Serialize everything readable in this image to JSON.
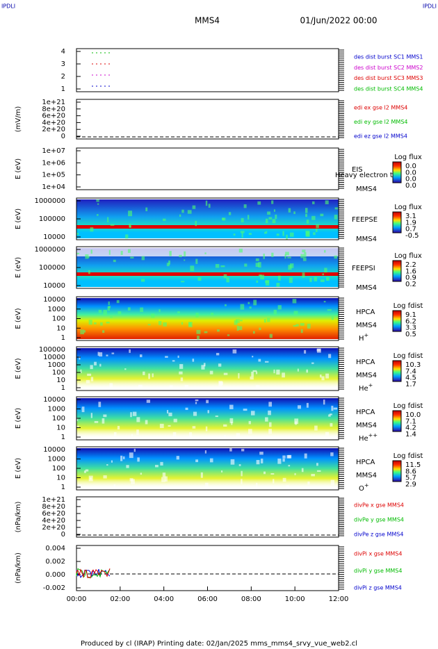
{
  "header": {
    "left": "IPDLI",
    "right": "IPDLI",
    "center": "MMS4",
    "date": "01/Jun/2022 00:00"
  },
  "panels": [
    {
      "yticks": [
        "4",
        "3",
        "2",
        "1"
      ],
      "labels": [
        {
          "text": "des dist burst SC1 MMS1",
          "color": "#0000cc"
        },
        {
          "text": "des dist burst SC2 MMS2",
          "color": "#cc00cc"
        },
        {
          "text": "des dist burst SC3 MMS3",
          "color": "#dd0000"
        },
        {
          "text": "des dist burst SC4 MMS4",
          "color": "#00bb00"
        }
      ]
    },
    {
      "ylabel": "(mV/m)",
      "yticks": [
        "1e+21",
        "8e+20",
        "6e+20",
        "4e+20",
        "2e+20",
        "0"
      ],
      "labels": [
        {
          "text": "edi ex gse l2 MMS4",
          "color": "#dd0000"
        },
        {
          "text": "edi ey gse l2 MMS4",
          "color": "#00bb00"
        },
        {
          "text": "edi ez gse l2 MMS4",
          "color": "#0000cc"
        }
      ]
    },
    {
      "ylabel": "E (eV)",
      "yticks": [
        "1e+07",
        "1e+06",
        "1e+05",
        "1e+04"
      ],
      "instrument": "EIS",
      "overlay": "Heavy electron to",
      "sc": "MMS4",
      "colorbar": {
        "title": "Log flux",
        "labels": [
          "0.0",
          "0.0",
          "0.0",
          "0.0"
        ]
      }
    },
    {
      "ylabel": "E (eV)",
      "yticks": [
        "1000000",
        "100000",
        "10000"
      ],
      "instrument": "FEEPSE",
      "sc": "MMS4",
      "colorbar": {
        "title": "Log flux",
        "labels": [
          "3.1",
          "1.9",
          "0.7",
          "-0.5"
        ]
      }
    },
    {
      "ylabel": "E (eV)",
      "yticks": [
        "1000000",
        "100000",
        "10000"
      ],
      "instrument": "FEEPSI",
      "sc": "MMS4",
      "colorbar": {
        "title": "Log flux",
        "labels": [
          "2.2",
          "1.6",
          "0.9",
          "0.2"
        ]
      }
    },
    {
      "ylabel": "E (eV)",
      "yticks": [
        "10000",
        "1000",
        "100",
        "10",
        "1"
      ],
      "instrument": "HPCA",
      "sc": "MMS4",
      "ion": {
        "base": "H",
        "charge": "+"
      },
      "colorbar": {
        "title": "Log fdist",
        "labels": [
          "9.1",
          "6.2",
          "3.3",
          "0.5"
        ]
      }
    },
    {
      "ylabel": "E (eV)",
      "yticks": [
        "100000",
        "10000",
        "1000",
        "100",
        "10",
        "1"
      ],
      "instrument": "HPCA",
      "sc": "MMS4",
      "ion": {
        "base": "He",
        "charge": "+"
      },
      "colorbar": {
        "title": "Log fdist",
        "labels": [
          "10.3",
          "7.4",
          "4.5",
          "1.7"
        ]
      }
    },
    {
      "ylabel": "E (eV)",
      "yticks": [
        "10000",
        "1000",
        "100",
        "10",
        "1"
      ],
      "instrument": "HPCA",
      "sc": "MMS4",
      "ion": {
        "base": "He",
        "charge": "++"
      },
      "colorbar": {
        "title": "Log fdist",
        "labels": [
          "10.0",
          "7.1",
          "4.2",
          "1.4"
        ]
      }
    },
    {
      "ylabel": "E (eV)",
      "yticks": [
        "10000",
        "1000",
        "100",
        "10",
        "1"
      ],
      "instrument": "HPCA",
      "sc": "MMS4",
      "ion": {
        "base": "O",
        "charge": "+"
      },
      "colorbar": {
        "title": "Log fdist",
        "labels": [
          "11.5",
          "8.6",
          "5.7",
          "2.9"
        ]
      }
    },
    {
      "ylabel": "(nPa/km)",
      "yticks": [
        "1e+21",
        "8e+20",
        "6e+20",
        "4e+20",
        "2e+20",
        "0"
      ],
      "labels": [
        {
          "text": "divPe x gse MMS4",
          "color": "#dd0000"
        },
        {
          "text": "divPe y gse MMS4",
          "color": "#00bb00"
        },
        {
          "text": "divPe z gse MMS4",
          "color": "#0000cc"
        }
      ]
    },
    {
      "ylabel": "(nPa/km)",
      "yticks": [
        "0.004",
        "0.002",
        "0.000",
        "-0.002"
      ],
      "labels": [
        {
          "text": "divPi x gse MMS4",
          "color": "#dd0000"
        },
        {
          "text": "divPi y gse MMS4",
          "color": "#00bb00"
        },
        {
          "text": "divPi z gse MMS4",
          "color": "#0000cc"
        }
      ]
    }
  ],
  "xticks": [
    "00:00",
    "02:00",
    "04:00",
    "06:00",
    "08:00",
    "10:00",
    "12:00"
  ],
  "footer": "Produced by cl (IRAP)   Printing date: 02/Jan/2025   mms_mms4_srvy_vue_web2.cl"
}
